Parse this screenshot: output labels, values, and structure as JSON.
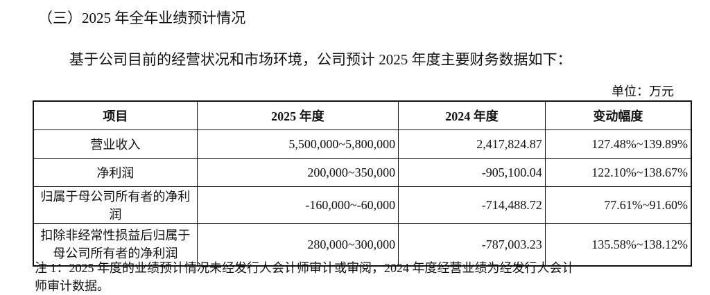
{
  "heading": "（三）2025 年全年业绩预计情况",
  "intro": "基于公司目前的经营状况和市场环境，公司预计 2025 年度主要财务数据如下：",
  "unit": "单位：万元",
  "table": {
    "header": [
      "项目",
      "2025 年度",
      "2024 年度",
      "变动幅度"
    ],
    "rows": [
      [
        "营业收入",
        "5,500,000~5,800,000",
        "2,417,824.87",
        "127.48%~139.89%"
      ],
      [
        "净利润",
        "200,000~350,000",
        "-905,100.04",
        "122.10%~138.67%"
      ],
      [
        "归属于母公司所有者的净利润",
        "-160,000~-60,000",
        "-714,488.72",
        "77.61%~91.60%"
      ],
      [
        "扣除非经常性损益后归属于母公司所有者的净利润",
        "280,000~300,000",
        "-787,003.23",
        "135.58%~138.12%"
      ]
    ]
  },
  "note": {
    "lines": [
      "注 1：2025 年度的业绩预计情况未经发行人会计师审计或审阅，2024 年度经营业绩为经发行人会计",
      "师审计数据。"
    ]
  }
}
